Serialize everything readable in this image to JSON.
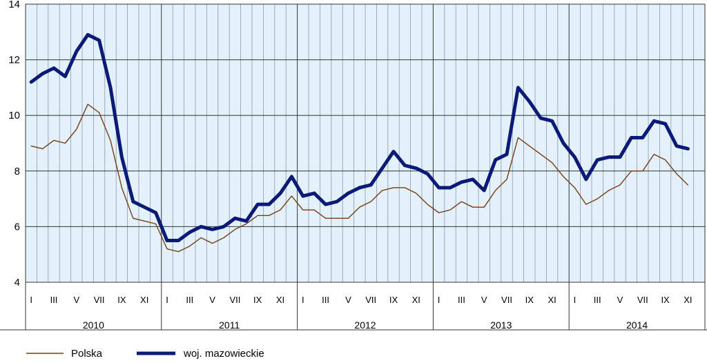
{
  "chart_data": {
    "type": "line",
    "title": "",
    "xlabel": "",
    "ylabel": "",
    "ylim": [
      4,
      14
    ],
    "yticks": [
      4,
      6,
      8,
      10,
      12,
      14
    ],
    "grid": true,
    "legend_position": "bottom-left",
    "month_tick_labels": [
      "I",
      "III",
      "V",
      "VII",
      "IX",
      "XI"
    ],
    "years": [
      "2010",
      "2011",
      "2012",
      "2013",
      "2014"
    ],
    "series": [
      {
        "name": "Polska",
        "color": "#7a3a14",
        "values": [
          8.9,
          8.8,
          9.1,
          9.0,
          9.5,
          10.4,
          10.1,
          9.1,
          7.4,
          6.3,
          6.2,
          6.1,
          5.2,
          5.1,
          5.3,
          5.6,
          5.4,
          5.6,
          5.9,
          6.1,
          6.4,
          6.4,
          6.6,
          7.1,
          6.6,
          6.6,
          6.3,
          6.3,
          6.3,
          6.7,
          6.9,
          7.3,
          7.4,
          7.4,
          7.2,
          6.8,
          6.5,
          6.6,
          6.9,
          6.7,
          6.7,
          7.3,
          7.7,
          9.2,
          8.9,
          8.6,
          8.3,
          7.8,
          7.4,
          6.8,
          7.0,
          7.3,
          7.5,
          8.0,
          8.0,
          8.6,
          8.4,
          7.9,
          7.5
        ]
      },
      {
        "name": "woj. mazowieckie",
        "color": "#0b1a78",
        "values": [
          11.2,
          11.5,
          11.7,
          11.4,
          12.3,
          12.9,
          12.7,
          11.0,
          8.5,
          6.9,
          6.7,
          6.5,
          5.5,
          5.5,
          5.8,
          6.0,
          5.9,
          6.0,
          6.3,
          6.2,
          6.8,
          6.8,
          7.2,
          7.8,
          7.1,
          7.2,
          6.8,
          6.9,
          7.2,
          7.4,
          7.5,
          8.1,
          8.7,
          8.2,
          8.1,
          7.9,
          7.4,
          7.4,
          7.6,
          7.7,
          7.3,
          8.4,
          8.6,
          11.0,
          10.5,
          9.9,
          9.8,
          9.0,
          8.5,
          7.7,
          8.4,
          8.5,
          8.5,
          9.2,
          9.2,
          9.8,
          9.7,
          8.9,
          8.8
        ]
      }
    ]
  }
}
